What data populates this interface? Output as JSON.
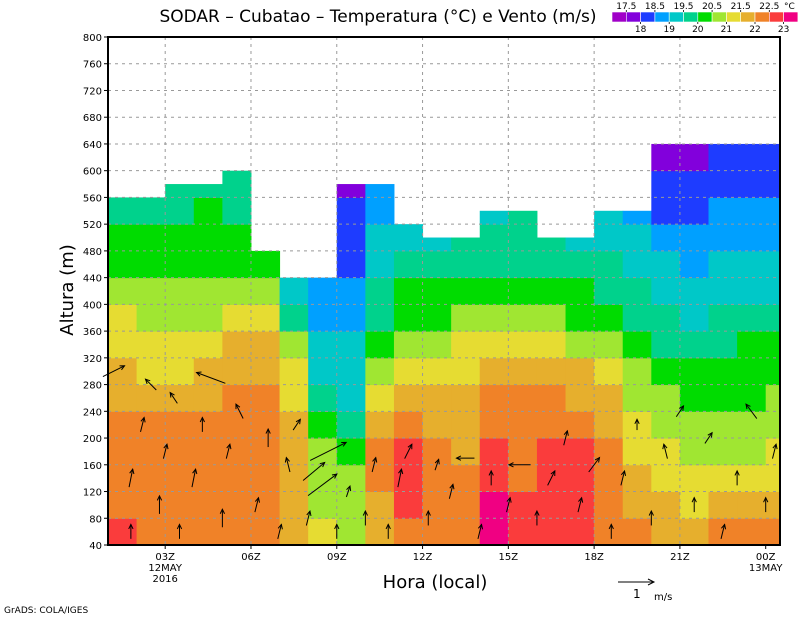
{
  "chart_data": {
    "type": "heatmap",
    "title": "SODAR  –  Cubatao  –  Temperatura (°C) e Vento (m/s)",
    "xlabel": "Hora (local)",
    "ylabel": "Altura (m)",
    "xlim": [
      1,
      24.5
    ],
    "ylim": [
      40,
      800
    ],
    "yticks": [
      40,
      80,
      120,
      160,
      200,
      240,
      280,
      320,
      360,
      400,
      440,
      480,
      520,
      560,
      600,
      640,
      680,
      720,
      760,
      800
    ],
    "xticks": [
      {
        "hour": 3,
        "label": "03Z",
        "sub1": "12MAY",
        "sub2": "2016"
      },
      {
        "hour": 6,
        "label": "06Z"
      },
      {
        "hour": 9,
        "label": "09Z"
      },
      {
        "hour": 12,
        "label": "12Z"
      },
      {
        "hour": 15,
        "label": "15Z"
      },
      {
        "hour": 18,
        "label": "18Z"
      },
      {
        "hour": 21,
        "label": "21Z"
      },
      {
        "hour": 24,
        "label": "00Z",
        "sub1": "13MAY"
      }
    ],
    "grid": true,
    "colorbar": {
      "unit": "°C",
      "levels": [
        "17.5",
        "18",
        "18.5",
        "19",
        "19.5",
        "20",
        "20.5",
        "21",
        "21.5",
        "22",
        "22.5",
        "23"
      ],
      "colors": [
        "#a000c8",
        "#8200dc",
        "#1e3cff",
        "#00a0ff",
        "#00c8c8",
        "#00d28c",
        "#00dc00",
        "#a0e632",
        "#e6dc32",
        "#e6af2d",
        "#f08228",
        "#fa3c3c",
        "#f00082"
      ]
    },
    "band_heights": [
      40,
      80,
      120,
      160,
      200,
      240,
      280,
      320,
      360,
      400,
      440,
      480,
      520,
      560,
      600
    ],
    "columns": [
      {
        "hour": 1,
        "top": 560,
        "t": [
          22.6,
          22.3,
          22.2,
          22.2,
          22.1,
          21.9,
          21.6,
          21.3,
          21.0,
          20.7,
          20.3,
          20.0,
          19.8
        ]
      },
      {
        "hour": 2,
        "top": 560,
        "t": [
          22.3,
          22.2,
          22.2,
          22.1,
          22.0,
          21.8,
          21.4,
          21.1,
          20.9,
          20.6,
          20.3,
          20.0,
          19.8
        ]
      },
      {
        "hour": 3,
        "top": 580,
        "t": [
          22.3,
          22.2,
          22.1,
          22.1,
          22.0,
          21.8,
          21.2,
          21.0,
          20.8,
          20.6,
          20.3,
          20.1,
          19.9,
          19.8
        ]
      },
      {
        "hour": 4,
        "top": 580,
        "t": [
          22.2,
          22.2,
          22.1,
          22.1,
          22.0,
          21.9,
          21.6,
          21.2,
          20.9,
          20.7,
          20.4,
          20.2,
          20.0,
          19.8
        ]
      },
      {
        "hour": 5,
        "top": 600,
        "t": [
          22.3,
          22.3,
          22.2,
          22.2,
          22.1,
          22.0,
          21.9,
          21.6,
          21.3,
          20.9,
          20.4,
          20.2,
          19.9,
          19.8,
          19.7
        ]
      },
      {
        "hour": 6,
        "top": 480,
        "t": [
          22.2,
          22.2,
          22.2,
          22.1,
          22.1,
          22.0,
          21.8,
          21.5,
          21.1,
          20.7,
          20.3,
          20.1
        ]
      },
      {
        "hour": 7,
        "top": 440,
        "t": [
          21.8,
          21.8,
          21.9,
          21.8,
          21.6,
          21.4,
          21.0,
          20.6,
          19.8,
          19.3,
          19.0
        ]
      },
      {
        "hour": 8,
        "top": 440,
        "t": [
          21.2,
          20.9,
          20.8,
          20.6,
          20.2,
          19.6,
          19.3,
          19.1,
          18.9,
          18.6,
          18.4
        ]
      },
      {
        "hour": 9,
        "top": 580,
        "t": [
          20.8,
          20.7,
          20.6,
          20.4,
          19.6,
          19.4,
          19.2,
          19.0,
          18.8,
          18.6,
          18.4,
          18.2,
          18.1,
          17.8
        ]
      },
      {
        "hour": 10,
        "top": 580,
        "t": [
          21.8,
          21.9,
          22.0,
          22.1,
          21.6,
          21.1,
          20.8,
          20.4,
          19.9,
          19.6,
          19.3,
          19.1,
          18.9,
          18.8
        ]
      },
      {
        "hour": 11,
        "top": 520,
        "t": [
          22.3,
          22.5,
          22.6,
          22.5,
          22.2,
          21.8,
          21.3,
          20.9,
          20.3,
          20.0,
          19.7,
          19.4,
          19.2
        ]
      },
      {
        "hour": 12,
        "top": 500,
        "t": [
          22.1,
          22.2,
          22.2,
          22.1,
          21.9,
          21.6,
          21.3,
          20.8,
          20.3,
          20.0,
          19.7,
          19.3
        ]
      },
      {
        "hour": 13,
        "top": 500,
        "t": [
          22.3,
          22.1,
          22.0,
          21.9,
          21.8,
          21.7,
          21.4,
          21.0,
          20.6,
          20.2,
          19.8,
          19.5
        ]
      },
      {
        "hour": 14,
        "top": 540,
        "t": [
          23.2,
          23.1,
          22.9,
          22.7,
          22.4,
          22.0,
          21.6,
          21.1,
          20.7,
          20.3,
          19.9,
          19.6,
          19.4
        ]
      },
      {
        "hour": 15,
        "top": 540,
        "t": [
          22.8,
          22.7,
          22.4,
          22.3,
          22.2,
          22.0,
          21.7,
          21.3,
          20.8,
          20.4,
          19.9,
          19.7,
          19.5
        ]
      },
      {
        "hour": 16,
        "top": 500,
        "t": [
          22.8,
          22.8,
          22.7,
          22.6,
          22.3,
          22.0,
          21.6,
          21.1,
          20.7,
          20.2,
          19.8,
          19.5
        ]
      },
      {
        "hour": 17,
        "top": 500,
        "t": [
          22.7,
          22.7,
          22.6,
          22.5,
          22.2,
          21.9,
          21.5,
          20.9,
          20.4,
          20.0,
          19.7,
          19.4
        ]
      },
      {
        "hour": 18,
        "top": 540,
        "t": [
          22.3,
          22.3,
          22.2,
          22.1,
          21.8,
          21.5,
          21.1,
          20.7,
          20.3,
          19.9,
          19.5,
          19.2,
          19.0
        ]
      },
      {
        "hour": 19,
        "top": 540,
        "t": [
          22.1,
          21.9,
          21.7,
          21.4,
          21.1,
          20.9,
          20.6,
          20.2,
          19.9,
          19.5,
          19.2,
          19.0,
          18.8
        ]
      },
      {
        "hour": 20,
        "top": 640,
        "t": [
          21.9,
          21.6,
          21.3,
          21.1,
          20.8,
          20.5,
          20.2,
          19.9,
          19.5,
          19.2,
          19.0,
          18.7,
          18.3,
          18.1,
          17.8
        ]
      },
      {
        "hour": 21,
        "top": 640,
        "t": [
          21.8,
          21.4,
          21.1,
          20.8,
          20.5,
          20.2,
          20.0,
          19.7,
          19.4,
          19.1,
          18.9,
          18.6,
          18.3,
          18.1,
          17.9
        ]
      },
      {
        "hour": 22,
        "top": 640,
        "t": [
          22.0,
          21.6,
          21.2,
          20.9,
          20.6,
          20.3,
          20.0,
          19.8,
          19.5,
          19.2,
          19.0,
          18.7,
          18.5,
          18.2,
          18.1
        ]
      },
      {
        "hour": 23,
        "top": 640,
        "t": [
          22.1,
          21.7,
          21.2,
          20.9,
          20.7,
          20.4,
          20.2,
          20.0,
          19.6,
          19.3,
          19.1,
          18.8,
          18.6,
          18.3,
          18.2
        ]
      },
      {
        "hour": 24,
        "top": 640,
        "t": [
          22.1,
          21.8,
          21.3,
          21.0,
          20.8,
          20.6,
          20.4,
          20.1,
          19.8,
          19.4,
          19.1,
          18.9,
          18.7,
          18.4,
          18.2
        ]
      }
    ],
    "wind": [
      [
        1.2,
        300,
        0.6,
        0.3
      ],
      [
        1.8,
        60,
        0.0,
        0.4
      ],
      [
        1.8,
        140,
        0.1,
        0.5
      ],
      [
        2.2,
        220,
        0.1,
        0.4
      ],
      [
        2.5,
        280,
        -0.3,
        0.3
      ],
      [
        2.8,
        100,
        0.0,
        0.5
      ],
      [
        3.0,
        180,
        0.1,
        0.4
      ],
      [
        3.3,
        260,
        -0.2,
        0.3
      ],
      [
        3.5,
        60,
        0.0,
        0.4
      ],
      [
        4.0,
        140,
        0.1,
        0.5
      ],
      [
        4.3,
        220,
        0.0,
        0.4
      ],
      [
        4.6,
        290,
        -0.8,
        0.3
      ],
      [
        5.0,
        80,
        0.0,
        0.5
      ],
      [
        5.2,
        180,
        0.1,
        0.4
      ],
      [
        5.6,
        240,
        -0.2,
        0.4
      ],
      [
        6.2,
        100,
        0.1,
        0.4
      ],
      [
        6.6,
        200,
        0.0,
        0.5
      ],
      [
        7.0,
        60,
        0.1,
        0.4
      ],
      [
        7.3,
        160,
        -0.1,
        0.4
      ],
      [
        7.6,
        220,
        0.2,
        0.3
      ],
      [
        8.0,
        80,
        0.1,
        0.4
      ],
      [
        8.2,
        150,
        0.6,
        0.5
      ],
      [
        8.5,
        130,
        0.8,
        0.6
      ],
      [
        8.7,
        180,
        1.0,
        0.5
      ],
      [
        9.0,
        60,
        0.0,
        0.4
      ],
      [
        9.4,
        120,
        0.1,
        0.3
      ],
      [
        10.0,
        80,
        0.0,
        0.4
      ],
      [
        10.3,
        160,
        0.1,
        0.4
      ],
      [
        10.8,
        60,
        0.0,
        0.4
      ],
      [
        11.2,
        140,
        0.1,
        0.5
      ],
      [
        11.5,
        180,
        0.2,
        0.4
      ],
      [
        12.2,
        80,
        0.0,
        0.4
      ],
      [
        12.5,
        160,
        0.1,
        0.3
      ],
      [
        13.0,
        120,
        0.1,
        0.4
      ],
      [
        13.5,
        170,
        -0.5,
        0.0
      ],
      [
        14.0,
        60,
        0.1,
        0.4
      ],
      [
        14.4,
        140,
        0.0,
        0.4
      ],
      [
        15.0,
        100,
        0.1,
        0.4
      ],
      [
        15.4,
        160,
        -0.6,
        0.0
      ],
      [
        16.0,
        80,
        0.0,
        0.4
      ],
      [
        16.5,
        140,
        0.2,
        0.4
      ],
      [
        17.0,
        200,
        0.1,
        0.4
      ],
      [
        17.5,
        100,
        0.1,
        0.4
      ],
      [
        18.0,
        160,
        0.3,
        0.4
      ],
      [
        18.6,
        60,
        0.0,
        0.4
      ],
      [
        19.0,
        140,
        0.1,
        0.4
      ],
      [
        19.5,
        220,
        0.0,
        0.3
      ],
      [
        20.0,
        80,
        0.0,
        0.4
      ],
      [
        20.5,
        180,
        -0.1,
        0.4
      ],
      [
        21.0,
        240,
        0.2,
        0.3
      ],
      [
        21.5,
        100,
        0.0,
        0.4
      ],
      [
        22.0,
        200,
        0.2,
        0.3
      ],
      [
        22.5,
        60,
        0.1,
        0.4
      ],
      [
        23.0,
        140,
        0.0,
        0.4
      ],
      [
        23.5,
        240,
        -0.3,
        0.4
      ],
      [
        24.0,
        100,
        0.0,
        0.4
      ],
      [
        24.3,
        180,
        0.1,
        0.4
      ]
    ],
    "vector_legend": {
      "value": "1",
      "unit": "m/s",
      "speed": 1
    }
  },
  "credit": "GrADS: COLA/IGES"
}
